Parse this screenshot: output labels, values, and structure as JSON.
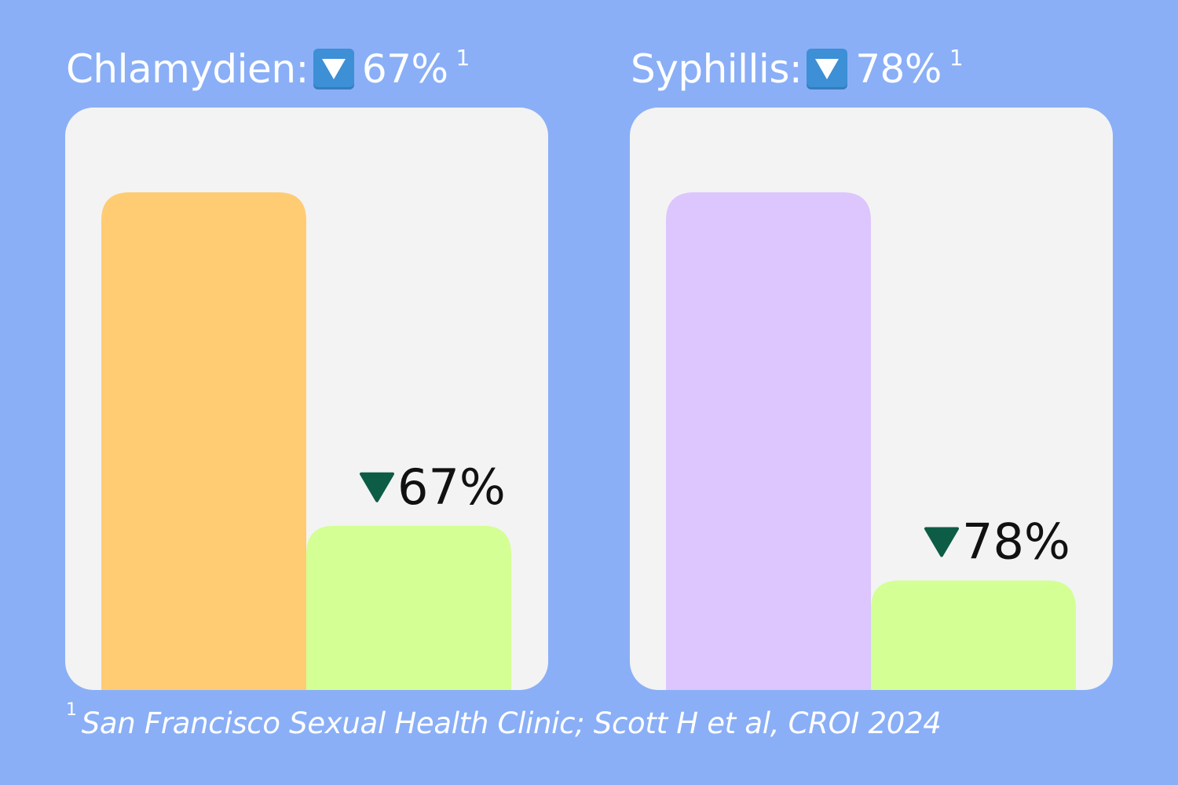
{
  "panels": [
    {
      "title": "Chlamydien:",
      "change": "67%",
      "footnote_ref": "1"
    },
    {
      "title": "Syphillis:",
      "change": "78%",
      "footnote_ref": "1"
    }
  ],
  "chart_data": [
    {
      "type": "bar",
      "title": "Chlamydien: 67%",
      "categories": [
        "",
        ""
      ],
      "values": [
        100,
        33
      ],
      "colors": [
        "#ffcc73",
        "#d3ff94"
      ],
      "annotation": "67%",
      "annotation_icon": "down-triangle-icon",
      "annotation_color": "#0d5c45",
      "ylim": [
        0,
        100
      ]
    },
    {
      "type": "bar",
      "title": "Syphillis: 78%",
      "categories": [
        "",
        ""
      ],
      "values": [
        100,
        22
      ],
      "colors": [
        "#dcc6fd",
        "#d3ff94"
      ],
      "annotation": "78%",
      "annotation_icon": "down-triangle-icon",
      "annotation_color": "#0d5c45",
      "ylim": [
        0,
        100
      ]
    }
  ],
  "footnote": {
    "marker": "1",
    "text": "San Francisco Sexual Health Clinic; Scott H et al, CROI 2024"
  },
  "colors": {
    "background": "#8aaff7",
    "card": "#f3f3f3",
    "badge": "#3d8fd6"
  }
}
